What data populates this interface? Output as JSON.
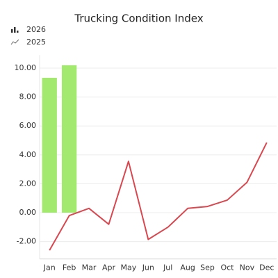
{
  "chart_data": {
    "type": "bar-line",
    "title": "Trucking Condition Index",
    "categories": [
      "Jan",
      "Feb",
      "Mar",
      "Apr",
      "May",
      "Jun",
      "Jul",
      "Aug",
      "Sep",
      "Oct",
      "Nov",
      "Dec"
    ],
    "series": [
      {
        "name": "2026",
        "type": "bar",
        "color": "#a3e86f",
        "values": [
          9.33,
          10.2,
          null,
          null,
          null,
          null,
          null,
          null,
          null,
          null,
          null,
          null
        ]
      },
      {
        "name": "2025",
        "type": "line",
        "color": "#d9474f",
        "values": [
          -2.6,
          -0.2,
          0.3,
          -0.8,
          3.55,
          -1.85,
          -1.0,
          0.3,
          0.43,
          0.87,
          2.1,
          4.85
        ]
      }
    ],
    "ylim": [
      -3.2,
      10.9
    ],
    "yticks": [
      {
        "value": -2,
        "label": "-2.00"
      },
      {
        "value": 0,
        "label": "0.00"
      },
      {
        "value": 2,
        "label": "2.00"
      },
      {
        "value": 4,
        "label": "4.00"
      },
      {
        "value": 6,
        "label": "6.00"
      },
      {
        "value": 8,
        "label": "8.00"
      },
      {
        "value": 10,
        "label": "10.00"
      }
    ],
    "grid": true
  }
}
